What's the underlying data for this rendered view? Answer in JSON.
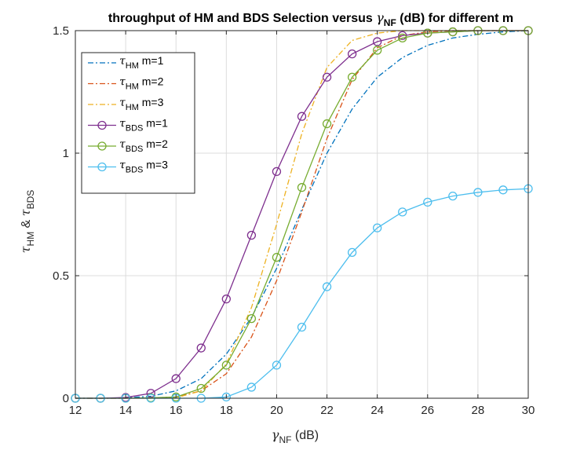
{
  "chart_data": {
    "type": "line",
    "title": {
      "prefix": "throughput of HM and BDS Selection versus ",
      "symbol": "γ",
      "subscript": "NF",
      "suffix": " (dB) for different m"
    },
    "xlabel": {
      "symbol": "γ",
      "subscript": "NF",
      "suffix": " (dB)"
    },
    "ylabel": {
      "symbol1": "τ",
      "sub1": "HM",
      "joiner": " & ",
      "symbol2": "τ",
      "sub2": "BDS"
    },
    "xlim": [
      12,
      30
    ],
    "ylim": [
      0,
      1.5
    ],
    "xticks": [
      12,
      14,
      16,
      18,
      20,
      22,
      24,
      26,
      28,
      30
    ],
    "yticks": [
      0,
      0.5,
      1,
      1.5
    ],
    "ytick_labels": [
      "0",
      "0.5",
      "1",
      "1.5"
    ],
    "grid": true,
    "legend_position": "top-left",
    "x": [
      12,
      13,
      14,
      15,
      16,
      17,
      18,
      19,
      20,
      21,
      22,
      23,
      24,
      25,
      26,
      27,
      28,
      29,
      30
    ],
    "series": [
      {
        "symbol": "τ",
        "sub": "HM",
        "label": " m=1",
        "style": "dashdot",
        "marker": "none",
        "color": "#0072BD",
        "values": [
          0,
          0,
          0.002,
          0.008,
          0.03,
          0.08,
          0.18,
          0.33,
          0.53,
          0.77,
          1.0,
          1.18,
          1.31,
          1.39,
          1.44,
          1.47,
          1.485,
          1.495,
          1.5
        ]
      },
      {
        "symbol": "τ",
        "sub": "HM",
        "label": " m=2",
        "style": "dashdot",
        "marker": "none",
        "color": "#D95319",
        "values": [
          0,
          0,
          0,
          0.001,
          0.005,
          0.03,
          0.1,
          0.25,
          0.48,
          0.76,
          1.06,
          1.3,
          1.43,
          1.48,
          1.495,
          1.5,
          1.5,
          1.5,
          1.5
        ]
      },
      {
        "symbol": "τ",
        "sub": "HM",
        "label": " m=3",
        "style": "dashdot",
        "marker": "none",
        "color": "#EDB120",
        "values": [
          0,
          0,
          0,
          0,
          0.002,
          0.03,
          0.14,
          0.37,
          0.71,
          1.08,
          1.35,
          1.46,
          1.49,
          1.5,
          1.5,
          1.5,
          1.5,
          1.5,
          1.5
        ]
      },
      {
        "symbol": "τ",
        "sub": "BDS",
        "label": " m=1",
        "style": "solid",
        "marker": "circle",
        "color": "#7E2F8E",
        "values": [
          0,
          0,
          0.003,
          0.02,
          0.08,
          0.205,
          0.405,
          0.665,
          0.925,
          1.15,
          1.31,
          1.405,
          1.455,
          1.48,
          1.49,
          1.495,
          1.5,
          1.5,
          1.5
        ]
      },
      {
        "symbol": "τ",
        "sub": "BDS",
        "label": " m=2",
        "style": "solid",
        "marker": "circle",
        "color": "#77AC30",
        "values": [
          0,
          0,
          0,
          0.002,
          0.005,
          0.04,
          0.135,
          0.325,
          0.575,
          0.86,
          1.12,
          1.31,
          1.42,
          1.47,
          1.49,
          1.495,
          1.5,
          1.5,
          1.5
        ]
      },
      {
        "symbol": "τ",
        "sub": "BDS",
        "label": " m=3",
        "style": "solid",
        "marker": "circle",
        "color": "#4DBEEE",
        "values": [
          0,
          0,
          0,
          0,
          0,
          0,
          0.005,
          0.045,
          0.135,
          0.29,
          0.455,
          0.595,
          0.695,
          0.76,
          0.8,
          0.825,
          0.84,
          0.85,
          0.855
        ]
      }
    ]
  }
}
